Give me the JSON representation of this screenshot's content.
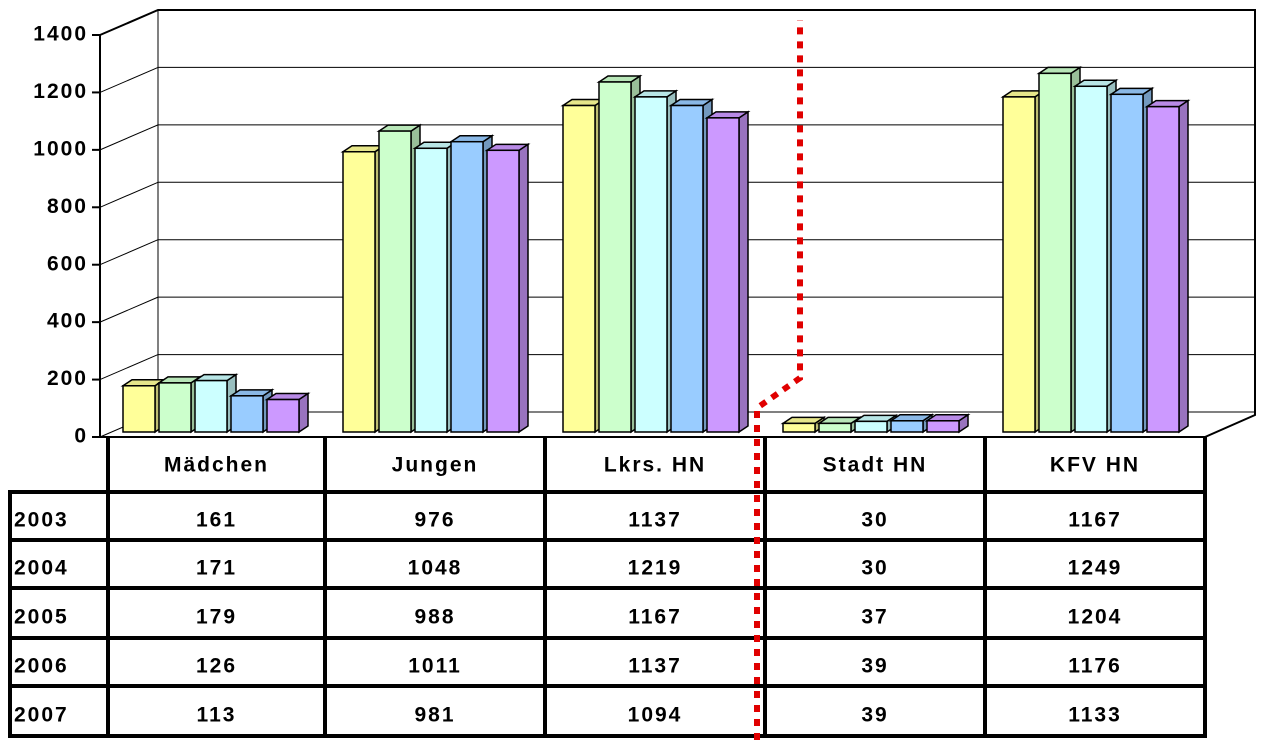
{
  "chart_data": {
    "type": "bar",
    "categories": [
      "Mädchen",
      "Jungen",
      "Lkrs. HN",
      "Stadt HN",
      "KFV HN"
    ],
    "series": [
      {
        "name": "2003",
        "color": "#ffff99",
        "values": [
          161,
          976,
          1137,
          30,
          1167
        ]
      },
      {
        "name": "2004",
        "color": "#ccffcc",
        "values": [
          171,
          1048,
          1219,
          30,
          1249
        ]
      },
      {
        "name": "2005",
        "color": "#ccffff",
        "values": [
          179,
          988,
          1167,
          37,
          1204
        ]
      },
      {
        "name": "2006",
        "color": "#99ccff",
        "values": [
          126,
          1011,
          1137,
          39,
          1176
        ]
      },
      {
        "name": "2007",
        "color": "#cc99ff",
        "values": [
          113,
          981,
          1094,
          39,
          1133
        ]
      }
    ],
    "ylim": [
      0,
      1400
    ],
    "yticks": [
      0,
      200,
      400,
      600,
      800,
      1000,
      1200,
      1400
    ],
    "grid": true
  }
}
